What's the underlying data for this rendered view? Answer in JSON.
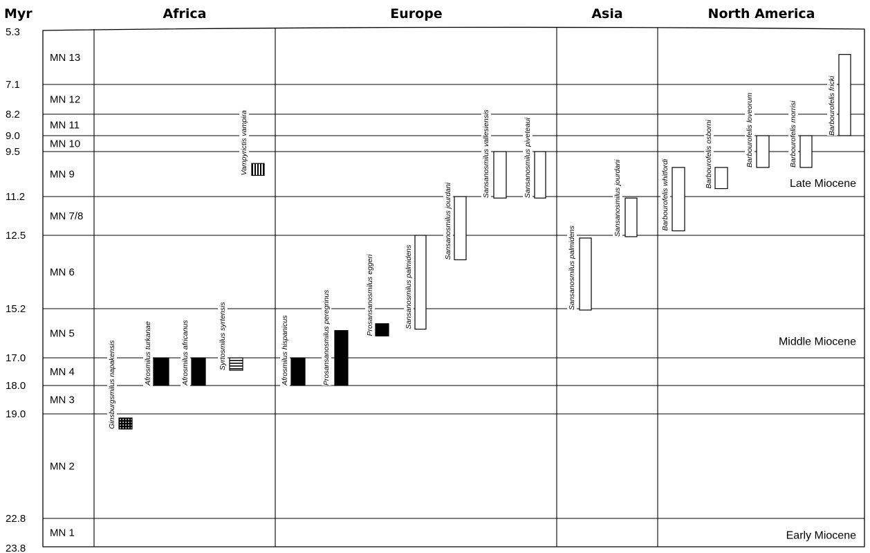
{
  "chart_data": {
    "type": "range-chart",
    "y_axis_label": "Myr",
    "y_range": [
      5.3,
      23.8
    ],
    "age_ticks": [
      {
        "value": 5.3,
        "label": "5.3"
      },
      {
        "value": 7.1,
        "label": "7.1"
      },
      {
        "value": 8.2,
        "label": "8.2"
      },
      {
        "value": 9.0,
        "label": "9.0"
      },
      {
        "value": 9.5,
        "label": "9.5"
      },
      {
        "value": 11.2,
        "label": "11.2"
      },
      {
        "value": 12.5,
        "label": "12.5"
      },
      {
        "value": 15.2,
        "label": "15.2"
      },
      {
        "value": 17.0,
        "label": "17.0"
      },
      {
        "value": 18.0,
        "label": "18.0"
      },
      {
        "value": 19.0,
        "label": "19.0"
      },
      {
        "value": 22.8,
        "label": "22.8"
      },
      {
        "value": 23.8,
        "label": "23.8"
      }
    ],
    "mn_zones": [
      {
        "label": "MN 13",
        "top": 5.3,
        "bottom": 7.1
      },
      {
        "label": "MN 12",
        "top": 7.1,
        "bottom": 8.2
      },
      {
        "label": "MN 11",
        "top": 8.2,
        "bottom": 9.0
      },
      {
        "label": "MN 10",
        "top": 9.0,
        "bottom": 9.5
      },
      {
        "label": "MN 9",
        "top": 9.5,
        "bottom": 11.2
      },
      {
        "label": "MN 7/8",
        "top": 11.2,
        "bottom": 12.5
      },
      {
        "label": "MN 6",
        "top": 12.5,
        "bottom": 15.2
      },
      {
        "label": "MN 5",
        "top": 15.2,
        "bottom": 17.0
      },
      {
        "label": "MN 4",
        "top": 17.0,
        "bottom": 18.0
      },
      {
        "label": "MN 3",
        "top": 18.0,
        "bottom": 19.0
      },
      {
        "label": "MN 2",
        "top": 19.0,
        "bottom": 22.8
      },
      {
        "label": "MN 1",
        "top": 22.8,
        "bottom": 23.8
      }
    ],
    "regions": [
      "Africa",
      "Europe",
      "Asia",
      "North America"
    ],
    "epochs": [
      {
        "label": "Late Miocene",
        "age": 10.7
      },
      {
        "label": "Middle Miocene",
        "age": 16.4
      },
      {
        "label": "Early Miocene",
        "age": 23.4
      }
    ],
    "taxa": [
      {
        "name": "Ginsburgsmilus napakensis",
        "region": "Africa",
        "start": 19.15,
        "end": 19.55,
        "fill": "grid"
      },
      {
        "name": "Afrosmilus turkanae",
        "region": "Africa",
        "start": 17.0,
        "end": 18.0,
        "fill": "solid"
      },
      {
        "name": "Afrosmilus africanus",
        "region": "Africa",
        "start": 17.0,
        "end": 18.0,
        "fill": "solid"
      },
      {
        "name": "Syrtosmilus syrtensis",
        "region": "Africa",
        "start": 17.0,
        "end": 17.45,
        "fill": "hlines"
      },
      {
        "name": "Vampyrictis vampira",
        "region": "Africa",
        "start": 9.95,
        "end": 10.4,
        "fill": "vlines"
      },
      {
        "name": "Afrosmilus hispanicus",
        "region": "Europe",
        "start": 17.0,
        "end": 18.0,
        "fill": "solid"
      },
      {
        "name": "Prosansanosmilus peregrinus",
        "region": "Europe",
        "start": 16.0,
        "end": 18.0,
        "fill": "solid"
      },
      {
        "name": "Prosansanosmilus eggeri",
        "region": "Europe",
        "start": 15.75,
        "end": 16.2,
        "fill": "solid"
      },
      {
        "name": "Sansanosmilus palmidens",
        "region": "Europe",
        "start": 12.5,
        "end": 15.95,
        "fill": "open"
      },
      {
        "name": "Sansanosmilus jourdani",
        "region": "Europe",
        "start": 11.2,
        "end": 13.4,
        "fill": "open"
      },
      {
        "name": "Sansanosmilus vallesiensis",
        "region": "Europe",
        "start": 9.5,
        "end": 11.25,
        "fill": "open"
      },
      {
        "name": "Sansanosmilus piveteaui",
        "region": "Europe",
        "start": 9.5,
        "end": 11.25,
        "fill": "open"
      },
      {
        "name": "Sansanosmilus palmidens",
        "region": "Asia",
        "start": 12.6,
        "end": 15.25,
        "fill": "open"
      },
      {
        "name": "Sansanosmilus jourdani",
        "region": "Asia",
        "start": 11.25,
        "end": 12.55,
        "fill": "open"
      },
      {
        "name": "Barbourofelis whitfordi",
        "region": "North America",
        "start": 10.1,
        "end": 12.35,
        "fill": "open"
      },
      {
        "name": "Barbourofelis osborni",
        "region": "North America",
        "start": 10.1,
        "end": 10.9,
        "fill": "open"
      },
      {
        "name": "Barbourofelis loveorum",
        "region": "North America",
        "start": 9.0,
        "end": 10.1,
        "fill": "open"
      },
      {
        "name": "Barbourofelis morrisi",
        "region": "North America",
        "start": 9.0,
        "end": 10.1,
        "fill": "open"
      },
      {
        "name": "Barbourofelis fricki",
        "region": "North America",
        "start": 6.1,
        "end": 9.0,
        "fill": "open"
      }
    ]
  }
}
